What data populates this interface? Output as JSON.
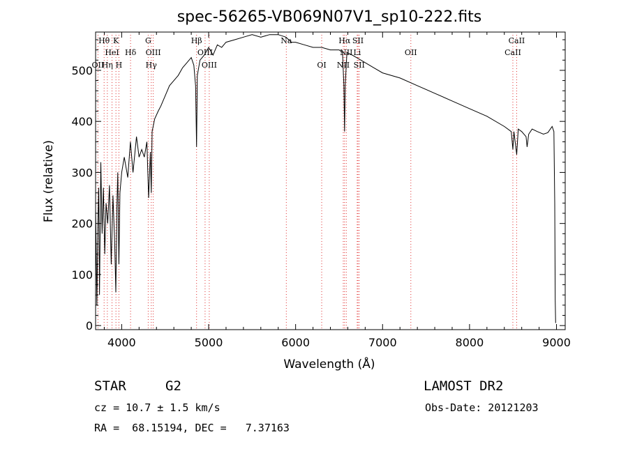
{
  "chart_data": {
    "type": "line",
    "title": "spec-56265-VB069N07V1_sp10-222.fits",
    "xlabel": "Wavelength (Å)",
    "ylabel": "Flux (relative)",
    "xlim": [
      3700,
      9100
    ],
    "ylim": [
      -8,
      575
    ],
    "xticks": [
      4000,
      5000,
      6000,
      7000,
      8000,
      9000
    ],
    "yticks": [
      0,
      100,
      200,
      300,
      400,
      500
    ],
    "grid": false,
    "series": [
      {
        "x": [
          3700,
          3715,
          3725,
          3735,
          3745,
          3760,
          3775,
          3790,
          3805,
          3820,
          3840,
          3860,
          3880,
          3900,
          3920,
          3933,
          3945,
          3955,
          3968,
          3980,
          4000,
          4030,
          4070,
          4100,
          4130,
          4170,
          4200,
          4230,
          4260,
          4290,
          4310,
          4330,
          4340,
          4350,
          4380,
          4420,
          4450,
          4500,
          4550,
          4600,
          4650,
          4700,
          4750,
          4800,
          4830,
          4850,
          4861,
          4870,
          4900,
          4950,
          5000,
          5050,
          5100,
          5150,
          5200,
          5300,
          5400,
          5500,
          5600,
          5700,
          5800,
          5890,
          5950,
          6000,
          6100,
          6200,
          6300,
          6400,
          6500,
          6540,
          6555,
          6563,
          6570,
          6590,
          6650,
          6700,
          6800,
          6900,
          7000,
          7200,
          7400,
          7600,
          7800,
          8000,
          8200,
          8400,
          8480,
          8498,
          8510,
          8542,
          8560,
          8600,
          8650,
          8662,
          8680,
          8720,
          8780,
          8850,
          8900,
          8950,
          8970,
          8980,
          8985,
          8990
        ],
        "y": [
          230,
          40,
          190,
          270,
          60,
          320,
          180,
          270,
          140,
          240,
          200,
          275,
          120,
          255,
          160,
          65,
          230,
          300,
          120,
          260,
          300,
          330,
          290,
          360,
          300,
          370,
          330,
          345,
          330,
          360,
          250,
          340,
          260,
          380,
          405,
          420,
          430,
          450,
          470,
          480,
          490,
          505,
          515,
          525,
          510,
          470,
          350,
          490,
          520,
          530,
          545,
          530,
          550,
          545,
          555,
          560,
          565,
          570,
          565,
          570,
          570,
          565,
          555,
          555,
          550,
          545,
          545,
          540,
          540,
          535,
          470,
          380,
          470,
          535,
          530,
          525,
          515,
          505,
          495,
          485,
          470,
          455,
          440,
          425,
          410,
          390,
          380,
          345,
          380,
          335,
          385,
          380,
          370,
          350,
          375,
          385,
          380,
          375,
          378,
          390,
          380,
          240,
          50,
          5
        ]
      }
    ],
    "line_markers": [
      {
        "label": "Hθ",
        "x": 3798,
        "row": 0
      },
      {
        "label": "K",
        "x": 3934,
        "row": 0
      },
      {
        "label": "HeI",
        "x": 3889,
        "row": 1
      },
      {
        "label": "Hδ",
        "x": 4102,
        "row": 1
      },
      {
        "label": "OII",
        "x": 3727,
        "row": 2
      },
      {
        "label": "Hη",
        "x": 3835,
        "row": 2
      },
      {
        "label": "H",
        "x": 3968,
        "row": 2
      },
      {
        "label": "G",
        "x": 4305,
        "row": 0
      },
      {
        "label": "OIII",
        "x": 4363,
        "row": 1
      },
      {
        "label": "Hγ",
        "x": 4340,
        "row": 2
      },
      {
        "label": "Hβ",
        "x": 4861,
        "row": 0
      },
      {
        "label": "OIII",
        "x": 4959,
        "row": 1
      },
      {
        "label": "OIII",
        "x": 5007,
        "row": 2
      },
      {
        "label": "Na",
        "x": 5893,
        "row": 0
      },
      {
        "label": "OI",
        "x": 6300,
        "row": 2
      },
      {
        "label": "Hα",
        "x": 6563,
        "row": 0
      },
      {
        "label": "SII",
        "x": 6717,
        "row": 0
      },
      {
        "label": "NII",
        "x": 6583,
        "row": 1
      },
      {
        "label": "Li",
        "x": 6708,
        "row": 1
      },
      {
        "label": "NII",
        "x": 6548,
        "row": 2
      },
      {
        "label": "SII",
        "x": 6731,
        "row": 2
      },
      {
        "label": "OII",
        "x": 7325,
        "row": 1
      },
      {
        "label": "CaII",
        "x": 8542,
        "row": 0
      },
      {
        "label": "CaII",
        "x": 8498,
        "row": 1
      }
    ]
  },
  "info": {
    "object_class": "STAR",
    "subclass": "G2",
    "survey": "LAMOST DR2",
    "redshift": "cz = 10.7 ± 1.5 km/s",
    "obs_date": "Obs-Date: 20121203",
    "coords": "RA =  68.15194, DEC =   7.37163"
  }
}
